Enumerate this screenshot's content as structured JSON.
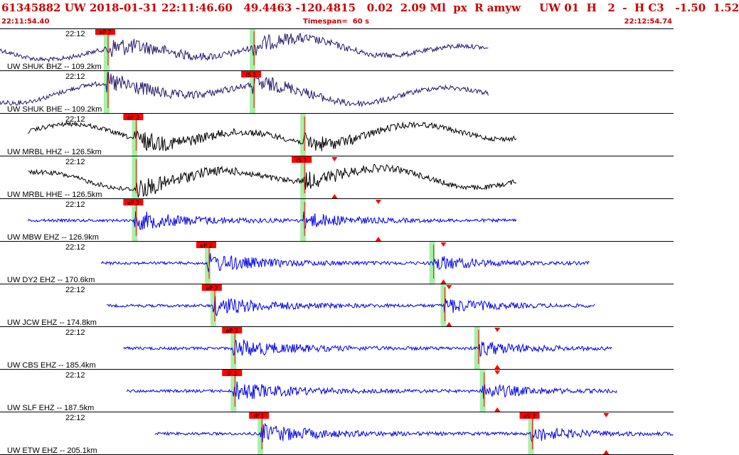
{
  "header": {
    "title": "61345882 UW 2018-01-31 22:11:46.60   49.4463 -120.4815   0.02  2.09 Ml  px  R amyw     UW 01  H   2  -  H C3   -1.50  1.52",
    "start_time": "22:11:54.40",
    "timespan": "Timespan=  60 s",
    "end_time": "22:12:54.74"
  },
  "colors": {
    "header_text": "#cc0000",
    "pick_flag": "#ff0000",
    "pick_window": "#a8f0a8",
    "trace_dark": "#24186a",
    "trace_black": "#000000",
    "trace_blue": "#0000ee",
    "divider": "#000000"
  },
  "chart_data": {
    "type": "seismogram",
    "time_range_s": [
      0,
      60
    ],
    "traces": [
      {
        "label": "UW SHUK BHZ -- 109.2km",
        "time_label": "22:12",
        "color": "#24186a",
        "data_start_s": 0,
        "data_end_s": 43.5,
        "picks": [
          {
            "label": "eP 2",
            "t": 9.5
          },
          {
            "label": "",
            "t": 22.5
          }
        ],
        "markers": []
      },
      {
        "label": "UW SHUK BHE -- 109.2km",
        "time_label": "22:12",
        "color": "#24186a",
        "data_start_s": 0,
        "data_end_s": 43.5,
        "picks": [
          {
            "label": "",
            "t": 9.5
          },
          {
            "label": "iS 1",
            "t": 22.5
          }
        ],
        "markers": []
      },
      {
        "label": "UW MRBL HHZ -- 126.5km",
        "time_label": "22:12",
        "color": "#000000",
        "data_start_s": 2.5,
        "data_end_s": 46,
        "picks": [
          {
            "label": "eP 2",
            "t": 12
          },
          {
            "label": "",
            "t": 27
          }
        ],
        "markers": []
      },
      {
        "label": "UW MRBL HHE -- 126.5km",
        "time_label": "22:12",
        "color": "#000000",
        "data_start_s": 2.5,
        "data_end_s": 46,
        "picks": [
          {
            "label": "",
            "t": 12
          },
          {
            "label": "iS 1",
            "t": 27
          }
        ],
        "markers": [
          {
            "t": 29.8,
            "pos": "top"
          },
          {
            "t": 29.8,
            "pos": "bottom"
          }
        ]
      },
      {
        "label": "UW MBW EHZ -- 126.9km",
        "time_label": "22:12",
        "color": "#0000ee",
        "data_start_s": 2.5,
        "data_end_s": 46,
        "picks": [
          {
            "label": "eP 2",
            "t": 12
          },
          {
            "label": "",
            "t": 27
          }
        ],
        "markers": [
          {
            "t": 33.7,
            "pos": "top"
          },
          {
            "t": 33.7,
            "pos": "bottom"
          }
        ]
      },
      {
        "label": "UW DY2 EHZ -- 170.6km",
        "time_label": "22:12",
        "color": "#0000ee",
        "data_start_s": 9,
        "data_end_s": 52.5,
        "picks": [
          {
            "label": "eP 2",
            "t": 18.5
          },
          {
            "label": "",
            "t": 38.5
          }
        ],
        "markers": [
          {
            "t": 39.5,
            "pos": "top"
          },
          {
            "t": 39.5,
            "pos": "bottom"
          }
        ]
      },
      {
        "label": "UW JCW EHZ -- 174.8km",
        "time_label": "22:12",
        "color": "#0000ee",
        "data_start_s": 9.5,
        "data_end_s": 53,
        "picks": [
          {
            "label": "eP 2",
            "t": 19
          },
          {
            "label": "",
            "t": 39.5
          }
        ],
        "markers": [
          {
            "t": 40,
            "pos": "top"
          },
          {
            "t": 40,
            "pos": "bottom"
          }
        ]
      },
      {
        "label": "UW CBS EHZ -- 185.4km",
        "time_label": "22:12",
        "color": "#0000ee",
        "data_start_s": 11,
        "data_end_s": 54.5,
        "picks": [
          {
            "label": "eP 2",
            "t": 20.8
          },
          {
            "label": "",
            "t": 42.5
          }
        ],
        "markers": [
          {
            "t": 44.3,
            "pos": "top"
          },
          {
            "t": 44.3,
            "pos": "bottom"
          }
        ]
      },
      {
        "label": "UW SLF EHZ -- 187.5km",
        "time_label": "22:12",
        "color": "#0000ee",
        "data_start_s": 11.3,
        "data_end_s": 55,
        "picks": [
          {
            "label": "iP 1",
            "t": 20.8
          },
          {
            "label": "",
            "t": 43
          }
        ],
        "markers": [
          {
            "t": 44.3,
            "pos": "top"
          },
          {
            "t": 44.3,
            "pos": "bottom"
          }
        ]
      },
      {
        "label": "UW ETW EHZ -- 205.1km",
        "time_label": "22:12",
        "color": "#0000ee",
        "data_start_s": 13.8,
        "data_end_s": 60,
        "picks": [
          {
            "label": "iP 1",
            "t": 23.2
          },
          {
            "label": "eS 2",
            "t": 47.3
          }
        ],
        "markers": [
          {
            "t": 54,
            "pos": "top"
          },
          {
            "t": 54,
            "pos": "bottom"
          }
        ]
      }
    ]
  }
}
